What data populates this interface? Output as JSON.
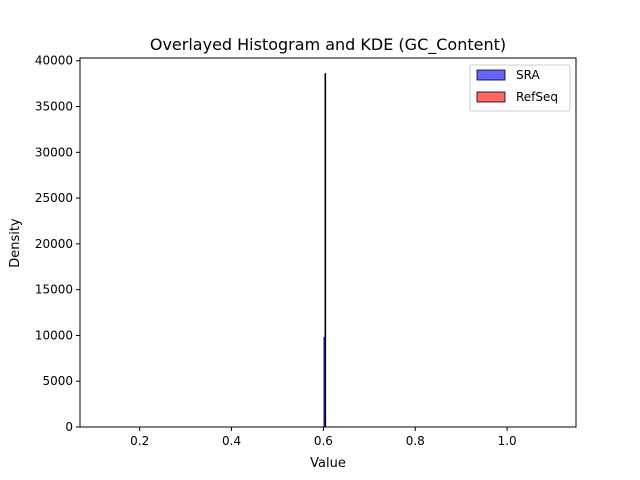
{
  "chart_data": {
    "type": "bar",
    "title": "Overlayed Histogram and KDE (GC_Content)",
    "xlabel": "Value",
    "ylabel": "Density",
    "xlim": [
      0.07,
      1.15
    ],
    "ylim": [
      0,
      40300
    ],
    "xticks": [
      0.2,
      0.4,
      0.6,
      0.8,
      1.0
    ],
    "xtick_labels": [
      "0.2",
      "0.4",
      "0.6",
      "0.8",
      "1.0"
    ],
    "yticks": [
      0,
      5000,
      10000,
      15000,
      20000,
      25000,
      30000,
      35000,
      40000
    ],
    "ytick_labels": [
      "0",
      "5000",
      "10000",
      "15000",
      "20000",
      "25000",
      "30000",
      "35000",
      "40000"
    ],
    "grid": false,
    "legend_placement": "top-right",
    "series": [
      {
        "name": "SRA",
        "kind": "histogram",
        "color": "#6666ff",
        "edge_color": "#0000ff",
        "bars": [
          {
            "x0": 0.6012,
            "x1": 0.6042,
            "value": 9800
          }
        ]
      },
      {
        "name": "RefSeq",
        "kind": "histogram",
        "color": "#ff6666",
        "edge_color": "#000000",
        "bars": [
          {
            "x0": 0.6033,
            "x1": 0.6036,
            "value": 38600
          }
        ]
      }
    ]
  }
}
